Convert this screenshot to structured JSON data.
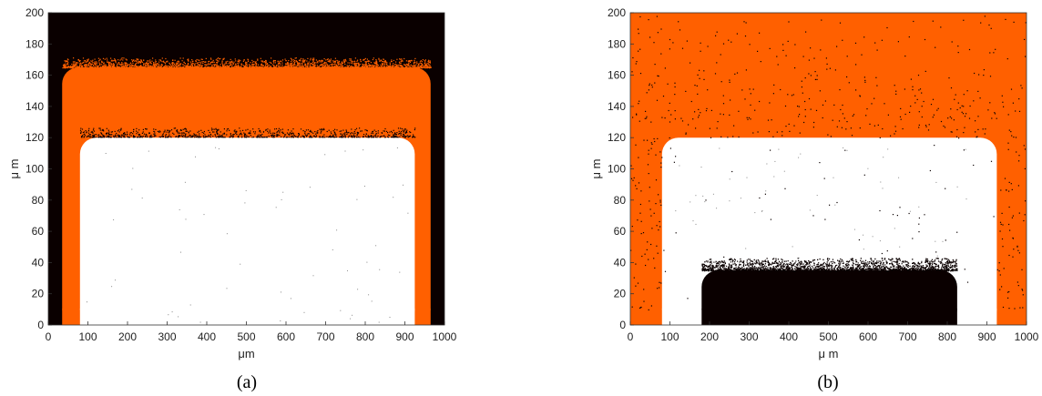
{
  "figures": [
    {
      "caption": "(a)",
      "xlabel": "μm",
      "ylabel": "μ m"
    },
    {
      "caption": "(b)",
      "xlabel": "μ m",
      "ylabel": "μ m"
    }
  ],
  "colors": {
    "orange": "#ff6000",
    "black": "#0a0000",
    "white": "#ffffff",
    "axis": "#333333"
  },
  "chart_data": [
    {
      "type": "heatmap",
      "title": "",
      "xlabel": "μm",
      "ylabel": "μ m",
      "xlim": [
        0,
        1000
      ],
      "ylim": [
        0,
        200
      ],
      "xticks": [
        0,
        100,
        200,
        300,
        400,
        500,
        600,
        700,
        800,
        900,
        1000
      ],
      "yticks": [
        0,
        20,
        40,
        60,
        80,
        100,
        120,
        140,
        160,
        180,
        200
      ],
      "grid": false,
      "regions": [
        {
          "name": "background",
          "color": "black",
          "x": [
            0,
            1000
          ],
          "y": [
            0,
            200
          ]
        },
        {
          "name": "orange layer",
          "color": "orange",
          "x": [
            35,
            965
          ],
          "y": [
            0,
            165
          ]
        },
        {
          "name": "white region",
          "color": "white",
          "x": [
            80,
            925
          ],
          "y": [
            0,
            120
          ]
        }
      ]
    },
    {
      "type": "heatmap",
      "title": "",
      "xlabel": "μ m",
      "ylabel": "μ m",
      "xlim": [
        0,
        1000
      ],
      "ylim": [
        0,
        200
      ],
      "xticks": [
        0,
        100,
        200,
        300,
        400,
        500,
        600,
        700,
        800,
        900,
        1000
      ],
      "yticks": [
        0,
        20,
        40,
        60,
        80,
        100,
        120,
        140,
        160,
        180,
        200
      ],
      "grid": false,
      "regions": [
        {
          "name": "background",
          "color": "orange",
          "x": [
            0,
            1000
          ],
          "y": [
            0,
            200
          ]
        },
        {
          "name": "white region",
          "color": "white",
          "x": [
            80,
            925
          ],
          "y": [
            0,
            120
          ]
        },
        {
          "name": "black region",
          "color": "black",
          "x": [
            180,
            825
          ],
          "y": [
            0,
            35
          ]
        }
      ]
    }
  ]
}
